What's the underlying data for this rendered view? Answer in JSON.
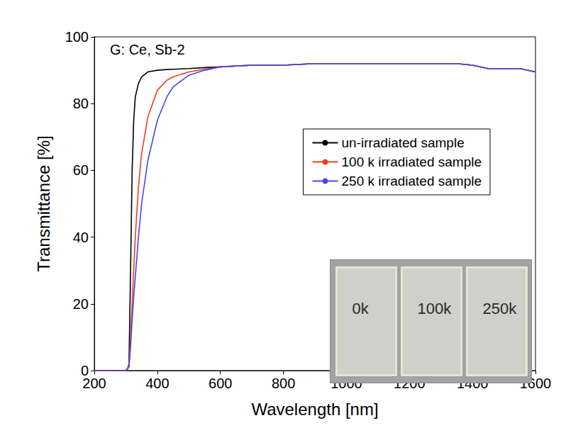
{
  "chart_data": {
    "type": "line",
    "title": "G: Ce, Sb-2",
    "x_label": "Wavelength [nm]",
    "y_label": "Transmittance [%]",
    "x": [
      200,
      300,
      305,
      310,
      315,
      320,
      325,
      330,
      340,
      350,
      370,
      400,
      430,
      450,
      500,
      550,
      600,
      700,
      800,
      900,
      1000,
      1100,
      1200,
      1300,
      1350,
      1400,
      1450,
      1500,
      1550,
      1600
    ],
    "series": [
      {
        "name": "un-irradiated sample",
        "color": "#000000",
        "values": [
          0,
          0,
          0.5,
          2,
          30,
          60,
          75,
          82,
          86,
          88,
          89.5,
          90,
          90.2,
          90.3,
          90.5,
          90.8,
          91,
          91.5,
          91.5,
          92,
          92,
          92,
          92,
          92,
          92,
          91.5,
          90.5,
          90.5,
          90.5,
          89.5
        ]
      },
      {
        "name": "100 k irradiated sample",
        "color": "#f03c1e",
        "values": [
          0,
          0,
          0.5,
          1.5,
          10,
          20,
          30,
          40,
          55,
          65,
          76,
          84,
          87,
          88,
          89.5,
          90.3,
          91,
          91.5,
          91.5,
          92,
          92,
          92,
          92,
          92,
          92,
          91.5,
          90.5,
          90.5,
          90.5,
          89.5
        ]
      },
      {
        "name": "250 k irradiated sample",
        "color": "#4646f0",
        "values": [
          0,
          0,
          0.5,
          1,
          7,
          15,
          22,
          28,
          40,
          50,
          63,
          75,
          82,
          85,
          88.5,
          90,
          91,
          91.5,
          91.5,
          92,
          92,
          92,
          92,
          92,
          92,
          91.5,
          90.5,
          90.5,
          90.5,
          89.5
        ]
      }
    ],
    "xlim": [
      200,
      1600
    ],
    "xticks": [
      200,
      400,
      600,
      800,
      1000,
      1200,
      1400,
      1600
    ],
    "ylim": [
      0,
      100
    ],
    "yticks": [
      0,
      20,
      40,
      60,
      80,
      100
    ],
    "grid": false,
    "legend": "right",
    "marker": "none",
    "line_style": "solid",
    "annotations": [
      "0k",
      "100k",
      "250k"
    ]
  }
}
